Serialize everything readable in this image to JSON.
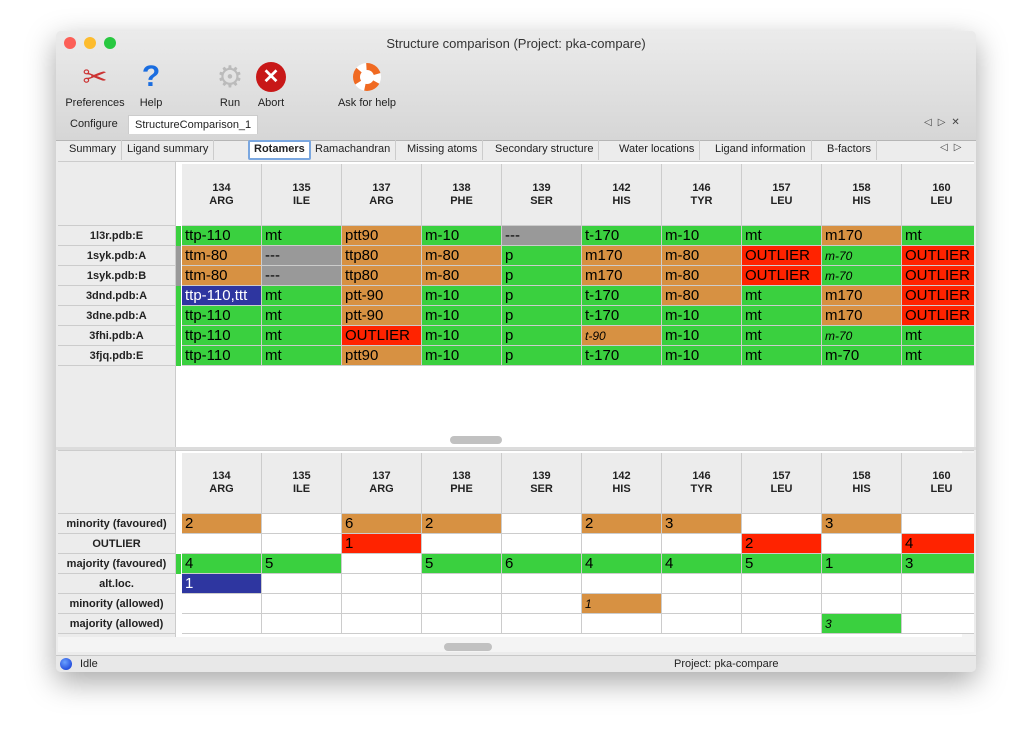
{
  "window": {
    "title": "Structure comparison (Project: pka-compare)"
  },
  "toolbar": [
    {
      "label": "Preferences",
      "icon": "preferences-icon"
    },
    {
      "label": "Help",
      "icon": "help-icon"
    },
    {
      "label": "Run",
      "icon": "run-gear-icon"
    },
    {
      "label": "Abort",
      "icon": "abort-icon"
    },
    {
      "label": "Ask for help",
      "icon": "lifebuoy-icon"
    }
  ],
  "doc_tabs": [
    {
      "label": "Configure"
    },
    {
      "label": "StructureComparison_1",
      "active": true
    }
  ],
  "sub_tabs": [
    {
      "label": "Summary"
    },
    {
      "label": "Ligand summary"
    },
    {
      "label": "Rotamers",
      "active": true
    },
    {
      "label": "Ramachandran"
    },
    {
      "label": "Missing atoms"
    },
    {
      "label": "Secondary structure"
    },
    {
      "label": "Water locations"
    },
    {
      "label": "Ligand information"
    },
    {
      "label": "B-factors"
    }
  ],
  "colors": {
    "fav": "#3ad03f",
    "allow": "#d79142",
    "out": "#ff2300",
    "alt": "#2e36a0",
    "na": "#999999",
    "none": "#ffffff"
  },
  "columns": [
    {
      "num": "134",
      "res": "ARG"
    },
    {
      "num": "135",
      "res": "ILE"
    },
    {
      "num": "137",
      "res": "ARG"
    },
    {
      "num": "138",
      "res": "PHE"
    },
    {
      "num": "139",
      "res": "SER"
    },
    {
      "num": "142",
      "res": "HIS"
    },
    {
      "num": "146",
      "res": "TYR"
    },
    {
      "num": "157",
      "res": "LEU"
    },
    {
      "num": "158",
      "res": "HIS"
    },
    {
      "num": "160",
      "res": "LEU"
    }
  ],
  "rotamers": [
    {
      "label": "1l3r.pdb:E",
      "strip": "fav",
      "cells": [
        {
          "t": "ttp-110",
          "c": "fav"
        },
        {
          "t": "mt",
          "c": "fav"
        },
        {
          "t": "ptt90",
          "c": "allow"
        },
        {
          "t": "m-10",
          "c": "fav"
        },
        {
          "t": "---",
          "c": "na"
        },
        {
          "t": "t-170",
          "c": "fav"
        },
        {
          "t": "m-10",
          "c": "fav"
        },
        {
          "t": "mt",
          "c": "fav"
        },
        {
          "t": "m170",
          "c": "allow"
        },
        {
          "t": "mt",
          "c": "fav"
        }
      ]
    },
    {
      "label": "1syk.pdb:A",
      "strip": "na",
      "cells": [
        {
          "t": "ttm-80",
          "c": "allow"
        },
        {
          "t": "---",
          "c": "na"
        },
        {
          "t": "ttp80",
          "c": "allow"
        },
        {
          "t": "m-80",
          "c": "allow"
        },
        {
          "t": "p",
          "c": "fav"
        },
        {
          "t": "m170",
          "c": "allow"
        },
        {
          "t": "m-80",
          "c": "allow"
        },
        {
          "t": "OUTLIER",
          "c": "out"
        },
        {
          "t": "m-70",
          "c": "fav",
          "i": true
        },
        {
          "t": "OUTLIER",
          "c": "out"
        }
      ]
    },
    {
      "label": "1syk.pdb:B",
      "strip": "na",
      "cells": [
        {
          "t": "ttm-80",
          "c": "allow"
        },
        {
          "t": "---",
          "c": "na"
        },
        {
          "t": "ttp80",
          "c": "allow"
        },
        {
          "t": "m-80",
          "c": "allow"
        },
        {
          "t": "p",
          "c": "fav"
        },
        {
          "t": "m170",
          "c": "allow"
        },
        {
          "t": "m-80",
          "c": "allow"
        },
        {
          "t": "OUTLIER",
          "c": "out"
        },
        {
          "t": "m-70",
          "c": "fav",
          "i": true
        },
        {
          "t": "OUTLIER",
          "c": "out"
        }
      ]
    },
    {
      "label": "3dnd.pdb:A",
      "strip": "fav",
      "cells": [
        {
          "t": "ttp-110,ttt",
          "c": "alt"
        },
        {
          "t": "mt",
          "c": "fav"
        },
        {
          "t": "ptt-90",
          "c": "allow"
        },
        {
          "t": "m-10",
          "c": "fav"
        },
        {
          "t": "p",
          "c": "fav"
        },
        {
          "t": "t-170",
          "c": "fav"
        },
        {
          "t": "m-80",
          "c": "allow"
        },
        {
          "t": "mt",
          "c": "fav"
        },
        {
          "t": "m170",
          "c": "allow"
        },
        {
          "t": "OUTLIER",
          "c": "out"
        }
      ]
    },
    {
      "label": "3dne.pdb:A",
      "strip": "fav",
      "cells": [
        {
          "t": "ttp-110",
          "c": "fav"
        },
        {
          "t": "mt",
          "c": "fav"
        },
        {
          "t": "ptt-90",
          "c": "allow"
        },
        {
          "t": "m-10",
          "c": "fav"
        },
        {
          "t": "p",
          "c": "fav"
        },
        {
          "t": "t-170",
          "c": "fav"
        },
        {
          "t": "m-10",
          "c": "fav"
        },
        {
          "t": "mt",
          "c": "fav"
        },
        {
          "t": "m170",
          "c": "allow"
        },
        {
          "t": "OUTLIER",
          "c": "out"
        }
      ]
    },
    {
      "label": "3fhi.pdb:A",
      "strip": "fav",
      "cells": [
        {
          "t": "ttp-110",
          "c": "fav"
        },
        {
          "t": "mt",
          "c": "fav"
        },
        {
          "t": "OUTLIER",
          "c": "out"
        },
        {
          "t": "m-10",
          "c": "fav"
        },
        {
          "t": "p",
          "c": "fav"
        },
        {
          "t": "t-90",
          "c": "allow",
          "i": true
        },
        {
          "t": "m-10",
          "c": "fav"
        },
        {
          "t": "mt",
          "c": "fav"
        },
        {
          "t": "m-70",
          "c": "fav",
          "i": true
        },
        {
          "t": "mt",
          "c": "fav"
        }
      ]
    },
    {
      "label": "3fjq.pdb:E",
      "strip": "fav",
      "cells": [
        {
          "t": "ttp-110",
          "c": "fav"
        },
        {
          "t": "mt",
          "c": "fav"
        },
        {
          "t": "ptt90",
          "c": "allow"
        },
        {
          "t": "m-10",
          "c": "fav"
        },
        {
          "t": "p",
          "c": "fav"
        },
        {
          "t": "t-170",
          "c": "fav"
        },
        {
          "t": "m-10",
          "c": "fav"
        },
        {
          "t": "mt",
          "c": "fav"
        },
        {
          "t": "m-70",
          "c": "fav"
        },
        {
          "t": "mt",
          "c": "fav"
        }
      ]
    }
  ],
  "summary": [
    {
      "label": "minority (favoured)",
      "strip": "none",
      "cells": [
        {
          "t": "2",
          "c": "allow"
        },
        {
          "t": "",
          "c": "none"
        },
        {
          "t": "6",
          "c": "allow"
        },
        {
          "t": "2",
          "c": "allow"
        },
        {
          "t": "",
          "c": "none"
        },
        {
          "t": "2",
          "c": "allow"
        },
        {
          "t": "3",
          "c": "allow"
        },
        {
          "t": "",
          "c": "none"
        },
        {
          "t": "3",
          "c": "allow"
        },
        {
          "t": "",
          "c": "none"
        }
      ]
    },
    {
      "label": "OUTLIER",
      "strip": "none",
      "cells": [
        {
          "t": "",
          "c": "none"
        },
        {
          "t": "",
          "c": "none"
        },
        {
          "t": "1",
          "c": "out"
        },
        {
          "t": "",
          "c": "none"
        },
        {
          "t": "",
          "c": "none"
        },
        {
          "t": "",
          "c": "none"
        },
        {
          "t": "",
          "c": "none"
        },
        {
          "t": "2",
          "c": "out"
        },
        {
          "t": "",
          "c": "none"
        },
        {
          "t": "4",
          "c": "out"
        }
      ]
    },
    {
      "label": "majority (favoured)",
      "strip": "fav",
      "cells": [
        {
          "t": "4",
          "c": "fav"
        },
        {
          "t": "5",
          "c": "fav"
        },
        {
          "t": "",
          "c": "none"
        },
        {
          "t": "5",
          "c": "fav"
        },
        {
          "t": "6",
          "c": "fav"
        },
        {
          "t": "4",
          "c": "fav"
        },
        {
          "t": "4",
          "c": "fav"
        },
        {
          "t": "5",
          "c": "fav"
        },
        {
          "t": "1",
          "c": "fav"
        },
        {
          "t": "3",
          "c": "fav"
        }
      ]
    },
    {
      "label": "alt.loc.",
      "strip": "none",
      "cells": [
        {
          "t": "1",
          "c": "alt"
        },
        {
          "t": "",
          "c": "none"
        },
        {
          "t": "",
          "c": "none"
        },
        {
          "t": "",
          "c": "none"
        },
        {
          "t": "",
          "c": "none"
        },
        {
          "t": "",
          "c": "none"
        },
        {
          "t": "",
          "c": "none"
        },
        {
          "t": "",
          "c": "none"
        },
        {
          "t": "",
          "c": "none"
        },
        {
          "t": "",
          "c": "none"
        }
      ]
    },
    {
      "label": "minority (allowed)",
      "strip": "none",
      "cells": [
        {
          "t": "",
          "c": "none"
        },
        {
          "t": "",
          "c": "none"
        },
        {
          "t": "",
          "c": "none"
        },
        {
          "t": "",
          "c": "none"
        },
        {
          "t": "",
          "c": "none"
        },
        {
          "t": "1",
          "c": "allow",
          "i": true
        },
        {
          "t": "",
          "c": "none"
        },
        {
          "t": "",
          "c": "none"
        },
        {
          "t": "",
          "c": "none"
        },
        {
          "t": "",
          "c": "none"
        }
      ]
    },
    {
      "label": "majority (allowed)",
      "strip": "none",
      "cells": [
        {
          "t": "",
          "c": "none"
        },
        {
          "t": "",
          "c": "none"
        },
        {
          "t": "",
          "c": "none"
        },
        {
          "t": "",
          "c": "none"
        },
        {
          "t": "",
          "c": "none"
        },
        {
          "t": "",
          "c": "none"
        },
        {
          "t": "",
          "c": "none"
        },
        {
          "t": "",
          "c": "none"
        },
        {
          "t": "3",
          "c": "fav",
          "i": true
        },
        {
          "t": "",
          "c": "none"
        }
      ]
    }
  ],
  "status": {
    "state": "Idle",
    "project": "Project: pka-compare"
  }
}
